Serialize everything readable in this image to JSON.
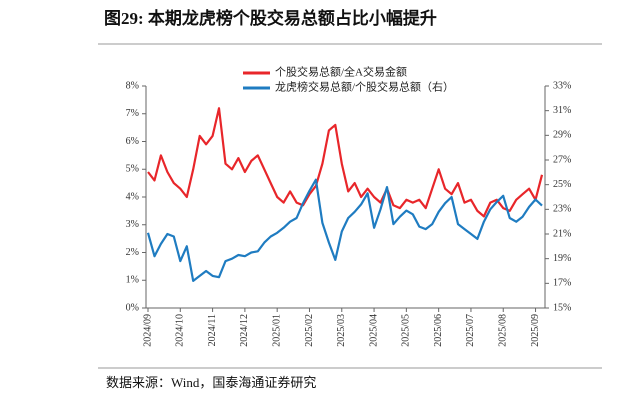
{
  "chart_data": {
    "type": "line",
    "title": "图29:  本期龙虎榜个股交易总额占比小幅提升",
    "source": "数据来源：Wind，国泰海通证券研究",
    "categories": [
      "2024/09",
      null,
      null,
      null,
      null,
      "2024/10",
      null,
      null,
      null,
      null,
      "2024/11",
      null,
      null,
      null,
      null,
      "2024/12",
      null,
      null,
      null,
      null,
      "2025/01",
      null,
      null,
      null,
      null,
      "2025/02",
      null,
      null,
      null,
      null,
      "2025/03",
      null,
      null,
      null,
      null,
      "2025/04",
      null,
      null,
      null,
      null,
      "2025/05",
      null,
      null,
      null,
      null,
      "2025/06",
      null,
      null,
      null,
      null,
      "2025/07",
      null,
      null,
      null,
      null,
      "2025/08",
      null,
      null,
      null,
      null,
      "2025/09",
      null
    ],
    "series": [
      {
        "name": "个股交易总额/全A交易金额",
        "color": "#e8262a",
        "values": [
          4.9,
          4.6,
          5.5,
          4.9,
          4.5,
          4.3,
          4.0,
          5.0,
          6.2,
          5.9,
          6.2,
          7.2,
          5.2,
          5.0,
          5.4,
          4.9,
          5.3,
          5.5,
          5.0,
          4.5,
          4.0,
          3.8,
          4.2,
          3.8,
          3.7,
          4.1,
          4.4,
          5.2,
          6.4,
          6.6,
          5.2,
          4.2,
          4.5,
          4.0,
          4.3,
          4.0,
          3.8,
          4.3,
          3.7,
          3.6,
          3.9,
          3.8,
          3.9,
          3.6,
          4.3,
          5.0,
          4.3,
          4.1,
          4.5,
          3.8,
          3.9,
          3.5,
          3.3,
          3.8,
          3.9,
          3.6,
          3.5,
          3.9,
          4.1,
          4.3,
          3.9,
          4.8
        ]
      },
      {
        "name": "龙虎榜交易总额/个股交易总额（右）",
        "color": "#1f7cc1",
        "axis": "y2",
        "values": [
          21.1,
          19.2,
          20.2,
          21.0,
          20.8,
          18.8,
          20.0,
          17.2,
          17.6,
          18.0,
          17.6,
          17.5,
          18.8,
          19.0,
          19.3,
          19.2,
          19.5,
          19.6,
          20.3,
          20.8,
          21.1,
          21.5,
          22.0,
          22.3,
          23.5,
          24.5,
          25.4,
          21.9,
          20.3,
          18.9,
          21.2,
          22.3,
          22.8,
          23.4,
          24.3,
          21.5,
          23.0,
          24.8,
          21.8,
          22.4,
          22.9,
          22.6,
          21.6,
          21.4,
          21.8,
          22.8,
          23.5,
          24.0,
          21.8,
          21.4,
          21.0,
          20.6,
          22.0,
          23.0,
          23.6,
          24.1,
          22.3,
          22.0,
          22.4,
          23.2,
          23.8,
          23.3
        ]
      }
    ],
    "ylim": [
      0,
      8
    ],
    "yticks": [
      {
        "value": 0,
        "label": "0%"
      },
      {
        "value": 1,
        "label": "1%"
      },
      {
        "value": 2,
        "label": "2%"
      },
      {
        "value": 3,
        "label": "3%"
      },
      {
        "value": 4,
        "label": "4%"
      },
      {
        "value": 5,
        "label": "5%"
      },
      {
        "value": 6,
        "label": "6%"
      },
      {
        "value": 7,
        "label": "7%"
      },
      {
        "value": 8,
        "label": "8%"
      }
    ],
    "y2lim": [
      15,
      33
    ],
    "y2ticks": [
      {
        "value": 15,
        "label": "15%"
      },
      {
        "value": 17,
        "label": "17%"
      },
      {
        "value": 19,
        "label": "19%"
      },
      {
        "value": 21,
        "label": "21%"
      },
      {
        "value": 23,
        "label": "23%"
      },
      {
        "value": 25,
        "label": "25%"
      },
      {
        "value": 27,
        "label": "27%"
      },
      {
        "value": 29,
        "label": "29%"
      },
      {
        "value": 31,
        "label": "31%"
      },
      {
        "value": 33,
        "label": "33%"
      }
    ],
    "grid": false
  }
}
